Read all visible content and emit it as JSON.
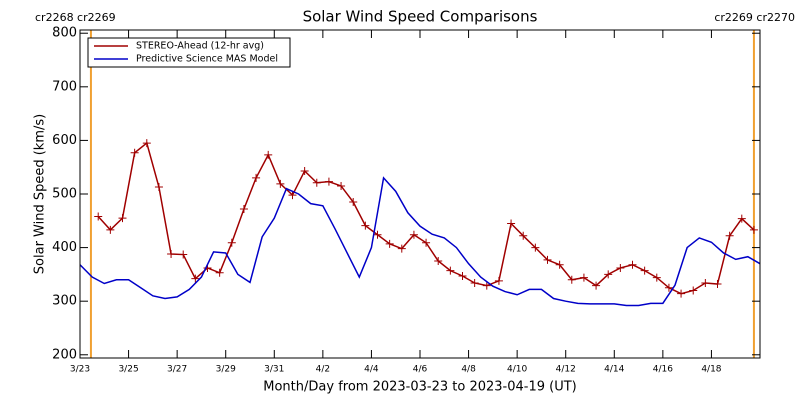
{
  "chart_data": {
    "type": "line",
    "title": "Solar Wind Speed Comparisons",
    "xlabel": "Month/Day from 2023-03-23 to 2023-04-19 (UT)",
    "ylabel": "Solar Wind Speed (km/s)",
    "annotations": [
      "cr2268 cr2269",
      "cr2269 cr2270"
    ],
    "annotation_color": "#f0a030",
    "boundaries": [
      0.45,
      27.75
    ],
    "xlim": [
      0,
      28
    ],
    "xticks": [
      {
        "value": 0,
        "label": "3/23"
      },
      {
        "value": 2,
        "label": "3/25"
      },
      {
        "value": 4,
        "label": "3/27"
      },
      {
        "value": 6,
        "label": "3/29"
      },
      {
        "value": 8,
        "label": "3/31"
      },
      {
        "value": 10,
        "label": "4/2"
      },
      {
        "value": 12,
        "label": "4/4"
      },
      {
        "value": 14,
        "label": "4/6"
      },
      {
        "value": 16,
        "label": "4/8"
      },
      {
        "value": 18,
        "label": "4/10"
      },
      {
        "value": 20,
        "label": "4/12"
      },
      {
        "value": 22,
        "label": "4/14"
      },
      {
        "value": 24,
        "label": "4/16"
      },
      {
        "value": 26,
        "label": "4/18"
      }
    ],
    "ylim": [
      194,
      806
    ],
    "yticks": [
      200,
      300,
      400,
      500,
      600,
      700,
      800
    ],
    "legend": "upper left",
    "series": [
      {
        "name": "STEREO-Ahead (12-hr avg)",
        "color": "#a00000",
        "marker": "+",
        "x": [
          0.75,
          1.25,
          1.75,
          2.25,
          2.75,
          3.25,
          3.75,
          4.25,
          4.75,
          5.25,
          5.75,
          6.25,
          6.75,
          7.25,
          7.75,
          8.25,
          8.75,
          9.25,
          9.75,
          10.25,
          10.75,
          11.25,
          11.75,
          12.25,
          12.75,
          13.25,
          13.75,
          14.25,
          14.75,
          15.25,
          15.75,
          16.25,
          16.75,
          17.25,
          17.75,
          18.25,
          18.75,
          19.25,
          19.75,
          20.25,
          20.75,
          21.25,
          21.75,
          22.25,
          22.75,
          23.25,
          23.75,
          24.25,
          24.75,
          25.25,
          25.75,
          26.25,
          26.75,
          27.25,
          27.75
        ],
        "values": [
          458,
          433,
          455,
          577,
          595,
          513,
          388,
          387,
          342,
          362,
          353,
          409,
          472,
          530,
          573,
          519,
          498,
          543,
          521,
          523,
          515,
          485,
          441,
          424,
          407,
          398,
          424,
          409,
          375,
          357,
          347,
          334,
          329,
          338,
          445,
          422,
          400,
          377,
          368,
          340,
          344,
          329,
          350,
          362,
          368,
          357,
          344,
          325,
          314,
          320,
          334,
          332,
          422,
          454,
          433
        ]
      },
      {
        "name": "Predictive Science MAS Model",
        "color": "#0000c8",
        "marker": null,
        "x": [
          0,
          0.5,
          1,
          1.5,
          2,
          2.5,
          3,
          3.5,
          4,
          4.5,
          5,
          5.5,
          6,
          6.5,
          7,
          7.5,
          8,
          8.5,
          9,
          9.5,
          10,
          10.5,
          11,
          11.5,
          12,
          12.5,
          13,
          13.5,
          14,
          14.5,
          15,
          15.5,
          16,
          16.5,
          17,
          17.5,
          18,
          18.5,
          19,
          19.5,
          20,
          20.5,
          21,
          21.5,
          22,
          22.5,
          23,
          23.5,
          24,
          24.5,
          25,
          25.5,
          26,
          26.5,
          27,
          27.5,
          28
        ],
        "values": [
          368,
          345,
          333,
          340,
          340,
          325,
          310,
          305,
          308,
          322,
          345,
          392,
          390,
          350,
          335,
          420,
          455,
          510,
          500,
          482,
          478,
          435,
          390,
          345,
          400,
          530,
          505,
          465,
          440,
          425,
          418,
          400,
          370,
          345,
          328,
          318,
          312,
          322,
          322,
          305,
          300,
          296,
          295,
          295,
          295,
          292,
          292,
          296,
          296,
          330,
          400,
          418,
          410,
          390,
          378,
          383,
          370
        ]
      }
    ]
  }
}
